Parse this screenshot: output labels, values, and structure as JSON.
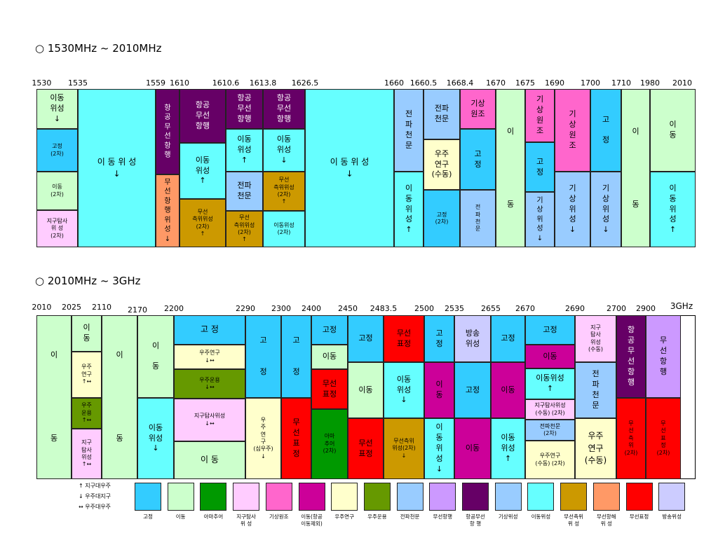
{
  "section1": {
    "title": "○ 1530MHz ~ 2010MHz",
    "ticks": [
      "1530",
      "1535",
      "1559",
      "1610",
      "1610.6",
      "1613.8",
      "1626.5",
      "1660",
      "1660.5",
      "1668.4",
      "1670",
      "1675",
      "1690",
      "1700",
      "1710",
      "1980",
      "2010"
    ],
    "cells": [
      {
        "text": "이동\n위성\n↓",
        "c": "#ccffcc"
      },
      {
        "text": "고정\n(2차)",
        "c": "#33ccff",
        "s": "s8"
      },
      {
        "text": "이동\n(2차)",
        "c": "#ccffcc",
        "s": "s8"
      },
      {
        "text": "지구탐사\n위    성\n(2차)",
        "c": "#ffccff",
        "s": "s8"
      },
      {
        "text": "이 동 위 성\n↓",
        "c": "#66ffff",
        "s": "s12"
      },
      {
        "text": "항\n공\n무\n선\n항\n행",
        "c": "#660066",
        "w": 1,
        "s": "s10"
      },
      {
        "text": "무\n선\n항\n행\n위\n성\n↓",
        "c": "#ff9966",
        "s": "s10"
      },
      {
        "text": "항공\n무선\n항행",
        "c": "#660066",
        "w": 1
      },
      {
        "text": "이동\n위성\n↑",
        "c": "#66ffff"
      },
      {
        "text": "무선\n측위위성\n(2차)\n↑",
        "c": "#cc9900",
        "s": "s8"
      },
      {
        "text": "항공\n무선\n항행",
        "c": "#660066",
        "w": 1
      },
      {
        "text": "이동\n위성\n↑",
        "c": "#66ffff"
      },
      {
        "text": "전파\n천문",
        "c": "#99ccff"
      },
      {
        "text": "무선\n측위위성\n(2차)\n↑",
        "c": "#cc9900",
        "s": "s8"
      },
      {
        "text": "항공\n무선\n항행",
        "c": "#660066",
        "w": 1
      },
      {
        "text": "이동\n위성\n↓",
        "c": "#66ffff"
      },
      {
        "text": "무선\n측위위성\n(2차)\n↑",
        "c": "#cc9900",
        "s": "s8"
      },
      {
        "text": "이동위성\n(2차)",
        "c": "#66ffff",
        "s": "s8"
      },
      {
        "text": "이 동 위 성\n↓",
        "c": "#66ffff",
        "s": "s12"
      },
      {
        "text": "전\n파\n천\n문",
        "c": "#99ccff"
      },
      {
        "text": "이\n동\n위\n성\n↑",
        "c": "#66ffff"
      },
      {
        "text": "전파\n천문",
        "c": "#99ccff"
      },
      {
        "text": "우주\n연구\n(수동)",
        "c": "#ffffcc"
      },
      {
        "text": "고정\n(2차)",
        "c": "#33ccff",
        "s": "s8"
      },
      {
        "text": "기상\n원조",
        "c": "#ff66cc"
      },
      {
        "text": "고\n정",
        "c": "#33ccff"
      },
      {
        "text": "전\n파\n천\n문",
        "c": "#99ccff",
        "s": "s8"
      },
      {
        "text": "이\n\n\n\n\n\n\n동",
        "c": "#ccffcc"
      },
      {
        "text": "기\n상\n원\n조",
        "c": "#ff66cc"
      },
      {
        "text": "고\n정",
        "c": "#33ccff"
      },
      {
        "text": "기\n상\n위\n성\n↓",
        "c": "#99ccff",
        "s": "s10"
      },
      {
        "text": "기\n상\n원\n조",
        "c": "#ff66cc"
      },
      {
        "text": "기\n상\n위\n성\n↓",
        "c": "#99ccff"
      },
      {
        "text": "고\n\n정",
        "c": "#33ccff"
      },
      {
        "text": "기\n상\n위\n성\n↓",
        "c": "#99ccff"
      },
      {
        "text": "이\n\n\n\n\n\n\n동",
        "c": "#ccffcc"
      },
      {
        "text": "이\n동",
        "c": "#ccffcc"
      },
      {
        "text": "이\n동\n위\n성\n↑",
        "c": "#66ffff"
      }
    ]
  },
  "section2": {
    "title": "○ 2010MHz ~ 3GHz",
    "ticks": [
      "2010",
      "2025",
      "2110",
      "2170",
      "2200",
      "2290",
      "2300",
      "2400",
      "2450",
      "2483.5",
      "2500",
      "2535",
      "2655",
      "2670",
      "2690",
      "2700",
      "2900",
      "3GHz"
    ],
    "cells": [
      {
        "text": "이\n\n\n\n\n\n\n\n동",
        "c": "#ccffcc"
      },
      {
        "text": "이\n동",
        "c": "#ccffcc"
      },
      {
        "text": "우주\n연구\n↑↔",
        "c": "#ffffcc",
        "s": "s8"
      },
      {
        "text": "우주\n운용\n↑↔",
        "c": "#669900",
        "s": "s8"
      },
      {
        "text": "지구\n탐사\n위성\n↑↔",
        "c": "#ffccff",
        "s": "s8"
      },
      {
        "text": "이\n\n\n\n\n\n\n\n동",
        "c": "#ccffcc"
      },
      {
        "text": "이\n\n동",
        "c": "#ccffcc"
      },
      {
        "text": "이동\n위성\n↓",
        "c": "#66ffff"
      },
      {
        "text": "고   정",
        "c": "#33ccff",
        "s": "s12"
      },
      {
        "text": "우주연구\n↓↔",
        "c": "#ffffcc",
        "s": "s8"
      },
      {
        "text": "우주운용\n↓↔",
        "c": "#669900",
        "s": "s8"
      },
      {
        "text": "지구탐사위성\n↓↔",
        "c": "#ffccff",
        "s": "s8"
      },
      {
        "text": "이  동",
        "c": "#ccffcc",
        "s": "s12"
      },
      {
        "text": "고\n\n\n정",
        "c": "#33ccff"
      },
      {
        "text": "우\n주\n연\n구\n(심우주)\n↓",
        "c": "#ffffcc",
        "s": "s8"
      },
      {
        "text": "고\n\n\n정",
        "c": "#33ccff"
      },
      {
        "text": "무\n선\n표\n정",
        "c": "#ff0000"
      },
      {
        "text": "고정",
        "c": "#33ccff"
      },
      {
        "text": "이동",
        "c": "#ccffcc"
      },
      {
        "text": "무선\n표정",
        "c": "#ff0000"
      },
      {
        "text": "아마\n추어\n(2차)",
        "c": "#009900",
        "s": "s8"
      },
      {
        "text": "고정",
        "c": "#33ccff"
      },
      {
        "text": "이동",
        "c": "#ccffcc"
      },
      {
        "text": "무선\n표정",
        "c": "#ff0000"
      },
      {
        "text": "무선\n표정",
        "c": "#ff0000"
      },
      {
        "text": "이동\n위성\n↓",
        "c": "#66ffff"
      },
      {
        "text": "무선측위\n위성(2차)\n↓",
        "c": "#cc9900",
        "s": "s8"
      },
      {
        "text": "고\n정",
        "c": "#33ccff"
      },
      {
        "text": "이\n동",
        "c": "#cc0099"
      },
      {
        "text": "이\n동\n위\n성\n↓",
        "c": "#66ffff"
      },
      {
        "text": "방송\n위성",
        "c": "#ccccff"
      },
      {
        "text": "고정",
        "c": "#33ccff"
      },
      {
        "text": "이동",
        "c": "#cc0099"
      },
      {
        "text": "고정",
        "c": "#33ccff"
      },
      {
        "text": "이동",
        "c": "#cc0099"
      },
      {
        "text": "이동\n위성\n↑",
        "c": "#66ffff"
      },
      {
        "text": "고정",
        "c": "#33ccff"
      },
      {
        "text": "이동",
        "c": "#cc0099"
      },
      {
        "text": "이동위성\n↑",
        "c": "#66ffff"
      },
      {
        "text": "지구탐사위성\n(수동) (2차)",
        "c": "#ffccff",
        "s": "s8"
      },
      {
        "text": "전파천문\n(2차)",
        "c": "#99ccff",
        "s": "s8"
      },
      {
        "text": "우주연구\n(수동) (2차)",
        "c": "#ffffcc",
        "s": "s8"
      },
      {
        "text": "지구\n탐사\n위성\n(수동)",
        "c": "#ffccff",
        "s": "s8"
      },
      {
        "text": "전\n파\n천\n문",
        "c": "#99ccff"
      },
      {
        "text": "우주\n연구\n(수동)",
        "c": "#ffffcc",
        "s": "s12"
      },
      {
        "text": "항\n공\n무\n선\n항\n행",
        "c": "#660066",
        "w": 1
      },
      {
        "text": "무\n선\n측\n위\n(2차)",
        "c": "#ff0000",
        "s": "s8"
      },
      {
        "text": "무\n선\n항\n행",
        "c": "#cc99ff"
      },
      {
        "text": "무\n선\n표\n정\n(2차)",
        "c": "#ff0000",
        "s": "s8"
      }
    ]
  },
  "direction_notes": [
    "↑  지구대우주",
    "↓  우주대지구",
    "↔  우주대우주"
  ],
  "legend": [
    {
      "label": "고정",
      "color": "#33ccff"
    },
    {
      "label": "이동",
      "color": "#ccffcc"
    },
    {
      "label": "아마추어",
      "color": "#009900"
    },
    {
      "label": "지구탐사\n위    성",
      "color": "#ffccff"
    },
    {
      "label": "기상원조",
      "color": "#ff66cc"
    },
    {
      "label": "이동(항공\n이동제외)",
      "color": "#cc0099"
    },
    {
      "label": "우주연구",
      "color": "#ffffcc"
    },
    {
      "label": "우주운용",
      "color": "#669900"
    },
    {
      "label": "전파천문",
      "color": "#99ccff"
    },
    {
      "label": "무선항행",
      "color": "#cc99ff"
    },
    {
      "label": "항공무선\n항    행",
      "color": "#660066"
    },
    {
      "label": "기상위성",
      "color": "#99ccff"
    },
    {
      "label": "이동위성",
      "color": "#66ffff"
    },
    {
      "label": "무선측위\n위    성",
      "color": "#cc9900"
    },
    {
      "label": "무선항해\n위    성",
      "color": "#ff9966"
    },
    {
      "label": "무선표정",
      "color": "#ff0000"
    },
    {
      "label": "방송위성",
      "color": "#ccccff"
    }
  ]
}
